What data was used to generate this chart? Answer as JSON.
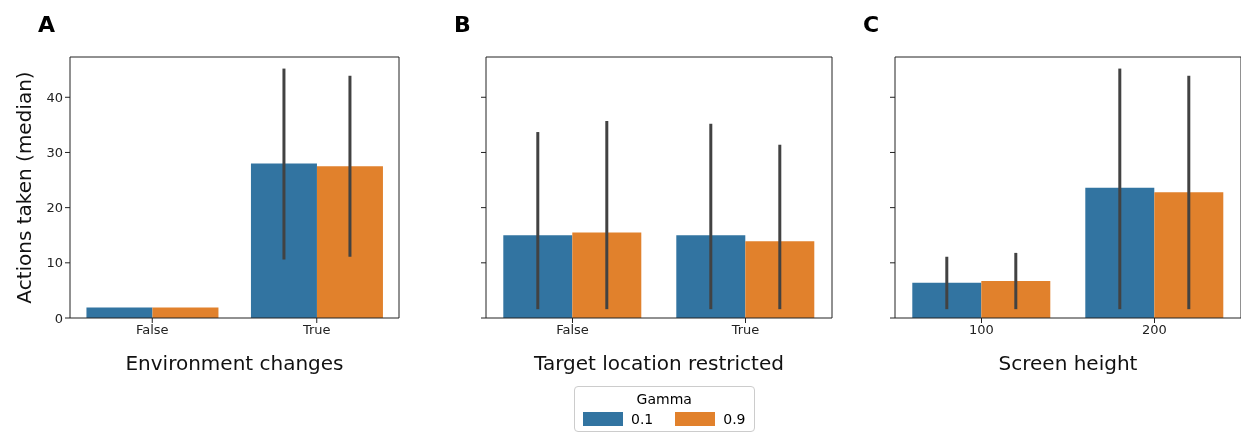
{
  "chart_data": [
    {
      "type": "bar",
      "title": "A",
      "xlabel": "Environment changes",
      "ylabel": "Actions taken (median)",
      "categories": [
        "False",
        "True"
      ],
      "ylim": [
        0,
        47.3
      ],
      "yticks": [
        0,
        10,
        20,
        30,
        40
      ],
      "legend": "bottom",
      "legend_title": "Gamma",
      "series": [
        {
          "name": "0.1",
          "color": "#3274a1",
          "values": [
            1.9,
            28
          ],
          "errors": [
            null,
            [
              10.6,
              45.2
            ]
          ]
        },
        {
          "name": "0.9",
          "color": "#e1812c",
          "values": [
            1.9,
            27.5
          ],
          "errors": [
            null,
            [
              11.1,
              43.9
            ]
          ]
        }
      ]
    },
    {
      "type": "bar",
      "title": "B",
      "xlabel": "Target location restricted",
      "categories": [
        "False",
        "True"
      ],
      "ylim": [
        0,
        47.3
      ],
      "yticks": [
        0,
        10,
        20,
        30,
        40
      ],
      "tick_labels": "x",
      "series": [
        {
          "name": "0.1",
          "color": "#3274a1",
          "values": [
            15,
            15
          ],
          "errors": [
            [
              1.6,
              33.7
            ],
            [
              1.6,
              35.2
            ]
          ]
        },
        {
          "name": "0.9",
          "color": "#e1812c",
          "values": [
            15.5,
            13.9
          ],
          "errors": [
            [
              1.6,
              35.7
            ],
            [
              1.6,
              31.4
            ]
          ]
        }
      ]
    },
    {
      "type": "bar",
      "title": "C",
      "xlabel": "Screen height",
      "categories": [
        "100",
        "200"
      ],
      "ylim": [
        0,
        47.3
      ],
      "yticks": [
        0,
        10,
        20,
        30,
        40
      ],
      "tick_labels": "x",
      "series": [
        {
          "name": "0.1",
          "color": "#3274a1",
          "values": [
            6.4,
            23.6
          ],
          "errors": [
            [
              1.6,
              11.1
            ],
            [
              1.6,
              45.2
            ]
          ]
        },
        {
          "name": "0.9",
          "color": "#e1812c",
          "values": [
            6.7,
            22.8
          ],
          "errors": [
            [
              1.6,
              11.8
            ],
            [
              1.6,
              43.9
            ]
          ]
        }
      ]
    }
  ]
}
